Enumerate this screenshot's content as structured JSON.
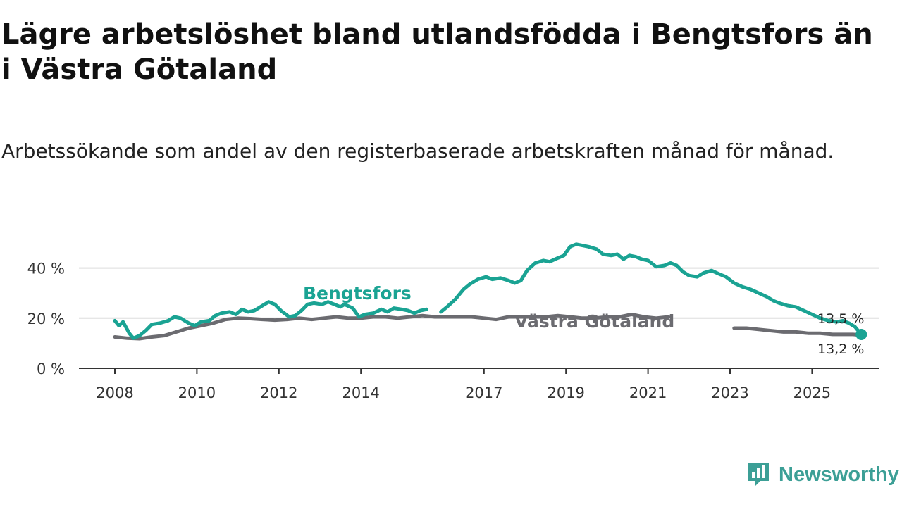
{
  "title": "Lägre arbetslöshet bland utlandsfödda i Bengtsfors än i Västra Götaland",
  "subtitle": "Arbetssökande som andel av den registerbaserade arbetskraften månad för månad.",
  "brand": {
    "name": "Newsworthy",
    "icon": "newsworthy-logo-icon"
  },
  "colors": {
    "bengtsfors": "#1aa393",
    "vastra_gotaland": "#6b6b70",
    "grid": "#dddddd",
    "axis": "#333333",
    "brand": "#3c9f96"
  },
  "chart_data": {
    "type": "line",
    "title": "Lägre arbetslöshet bland utlandsfödda i Bengtsfors än i Västra Götaland",
    "subtitle": "Arbetssökande som andel av den registerbaserade arbetskraften månad för månad.",
    "xlabel": "",
    "ylabel": "",
    "xlim": [
      2008,
      2026.2
    ],
    "ylim": [
      0,
      50
    ],
    "y_ticks": [
      0,
      20,
      40
    ],
    "y_tick_labels": [
      "0 %",
      "20 %",
      "40 %"
    ],
    "x_ticks": [
      2008,
      2010,
      2012,
      2014,
      2017,
      2019,
      2021,
      2023,
      2025
    ],
    "x_tick_labels": [
      "2008",
      "2010",
      "2012",
      "2014",
      "2017",
      "2019",
      "2021",
      "2023",
      "2025"
    ],
    "grid": true,
    "series": [
      {
        "name": "Bengtsfors",
        "label": "Bengtsfors",
        "end_label": "13,5 %",
        "points": [
          [
            2008.0,
            19.0
          ],
          [
            2008.1,
            17.0
          ],
          [
            2008.2,
            18.5
          ],
          [
            2008.35,
            14.0
          ],
          [
            2008.45,
            12.0
          ],
          [
            2008.6,
            13.0
          ],
          [
            2008.75,
            15.0
          ],
          [
            2008.9,
            17.5
          ],
          [
            2009.1,
            18.0
          ],
          [
            2009.3,
            19.0
          ],
          [
            2009.45,
            20.5
          ],
          [
            2009.6,
            20.0
          ],
          [
            2009.8,
            18.0
          ],
          [
            2009.95,
            17.0
          ],
          [
            2010.1,
            18.5
          ],
          [
            2010.3,
            19.0
          ],
          [
            2010.45,
            21.0
          ],
          [
            2010.6,
            22.0
          ],
          [
            2010.8,
            22.5
          ],
          [
            2010.95,
            21.5
          ],
          [
            2011.1,
            23.5
          ],
          [
            2011.25,
            22.5
          ],
          [
            2011.4,
            23.0
          ],
          [
            2011.6,
            25.0
          ],
          [
            2011.75,
            26.5
          ],
          [
            2011.9,
            25.5
          ],
          [
            2012.05,
            23.0
          ],
          [
            2012.25,
            20.5
          ],
          [
            2012.4,
            21.0
          ],
          [
            2012.55,
            23.0
          ],
          [
            2012.7,
            25.5
          ],
          [
            2012.85,
            26.0
          ],
          [
            2013.05,
            25.5
          ],
          [
            2013.2,
            26.5
          ],
          [
            2013.35,
            25.5
          ],
          [
            2013.5,
            24.5
          ],
          [
            2013.6,
            25.5
          ],
          [
            2013.8,
            24.0
          ],
          [
            2013.95,
            20.5
          ],
          [
            2014.1,
            21.5
          ],
          [
            2014.3,
            22.0
          ],
          [
            2014.5,
            23.5
          ],
          [
            2014.65,
            22.5
          ],
          [
            2014.8,
            24.0
          ],
          [
            2015.0,
            23.5
          ],
          [
            2015.15,
            23.0
          ],
          [
            2015.3,
            22.0
          ],
          [
            2015.45,
            23.0
          ],
          [
            2015.6,
            23.5
          ],
          null,
          [
            2015.95,
            22.5
          ],
          [
            2016.1,
            24.5
          ],
          [
            2016.3,
            27.5
          ],
          [
            2016.5,
            31.5
          ],
          [
            2016.65,
            33.5
          ],
          [
            2016.85,
            35.5
          ],
          [
            2017.05,
            36.5
          ],
          [
            2017.2,
            35.5
          ],
          [
            2017.4,
            36.0
          ],
          [
            2017.6,
            35.0
          ],
          [
            2017.75,
            34.0
          ],
          [
            2017.9,
            35.0
          ],
          [
            2018.05,
            39.0
          ],
          [
            2018.25,
            42.0
          ],
          [
            2018.45,
            43.0
          ],
          [
            2018.6,
            42.5
          ],
          [
            2018.8,
            44.0
          ],
          [
            2018.95,
            45.0
          ],
          [
            2019.1,
            48.5
          ],
          [
            2019.25,
            49.5
          ],
          [
            2019.4,
            49.0
          ],
          [
            2019.55,
            48.5
          ],
          [
            2019.75,
            47.5
          ],
          [
            2019.9,
            45.5
          ],
          [
            2020.1,
            45.0
          ],
          [
            2020.25,
            45.5
          ],
          [
            2020.4,
            43.5
          ],
          [
            2020.55,
            45.0
          ],
          [
            2020.7,
            44.5
          ],
          [
            2020.85,
            43.5
          ],
          [
            2021.0,
            43.0
          ],
          [
            2021.2,
            40.5
          ],
          [
            2021.4,
            41.0
          ],
          [
            2021.55,
            42.0
          ],
          [
            2021.7,
            41.0
          ],
          [
            2021.85,
            38.5
          ],
          [
            2022.0,
            37.0
          ],
          [
            2022.2,
            36.5
          ],
          [
            2022.35,
            38.0
          ],
          [
            2022.55,
            39.0
          ],
          [
            2022.75,
            37.5
          ],
          [
            2022.9,
            36.5
          ],
          [
            2023.1,
            34.0
          ],
          [
            2023.3,
            32.5
          ],
          [
            2023.5,
            31.5
          ],
          [
            2023.7,
            30.0
          ],
          [
            2023.9,
            28.5
          ],
          [
            2024.05,
            27.0
          ],
          [
            2024.2,
            26.0
          ],
          [
            2024.4,
            25.0
          ],
          [
            2024.6,
            24.5
          ],
          [
            2024.8,
            23.0
          ],
          [
            2025.0,
            21.5
          ],
          [
            2025.2,
            20.0
          ],
          [
            2025.4,
            19.0
          ],
          [
            2025.6,
            18.5
          ],
          [
            2025.75,
            19.0
          ],
          [
            2025.9,
            18.0
          ],
          [
            2026.05,
            16.5
          ],
          [
            2026.2,
            13.5
          ]
        ]
      },
      {
        "name": "Västra Götaland",
        "label": "Västra Götaland",
        "end_label": "13,2 %",
        "points": [
          [
            2008.0,
            12.5
          ],
          [
            2008.3,
            12.0
          ],
          [
            2008.6,
            11.8
          ],
          [
            2008.9,
            12.5
          ],
          [
            2009.2,
            13.0
          ],
          [
            2009.5,
            14.5
          ],
          [
            2009.8,
            16.0
          ],
          [
            2010.1,
            17.0
          ],
          [
            2010.4,
            18.0
          ],
          [
            2010.7,
            19.5
          ],
          [
            2011.0,
            20.0
          ],
          [
            2011.3,
            19.8
          ],
          [
            2011.6,
            19.5
          ],
          [
            2011.9,
            19.2
          ],
          [
            2012.2,
            19.5
          ],
          [
            2012.5,
            20.0
          ],
          [
            2012.8,
            19.5
          ],
          [
            2013.1,
            20.0
          ],
          [
            2013.4,
            20.5
          ],
          [
            2013.7,
            20.0
          ],
          [
            2014.0,
            20.0
          ],
          [
            2014.3,
            20.5
          ],
          [
            2014.6,
            20.5
          ],
          [
            2014.9,
            20.0
          ],
          [
            2015.2,
            20.5
          ],
          [
            2015.5,
            21.0
          ],
          [
            2015.8,
            20.5
          ],
          [
            2016.1,
            20.5
          ],
          [
            2016.4,
            20.5
          ],
          [
            2016.7,
            20.5
          ],
          [
            2017.0,
            20.0
          ],
          [
            2017.3,
            19.5
          ],
          [
            2017.6,
            20.5
          ],
          [
            2017.9,
            20.5
          ],
          [
            2018.2,
            20.5
          ],
          [
            2018.5,
            20.5
          ],
          [
            2018.8,
            21.0
          ],
          [
            2019.1,
            20.5
          ],
          [
            2019.4,
            20.0
          ],
          [
            2019.7,
            20.0
          ],
          [
            2020.0,
            20.5
          ],
          [
            2020.3,
            20.5
          ],
          [
            2020.6,
            21.5
          ],
          [
            2020.9,
            20.5
          ],
          [
            2021.2,
            20.0
          ],
          [
            2021.5,
            20.5
          ],
          null,
          [
            2023.1,
            16.0
          ],
          [
            2023.4,
            16.0
          ],
          [
            2023.7,
            15.5
          ],
          [
            2024.0,
            15.0
          ],
          [
            2024.3,
            14.5
          ],
          [
            2024.6,
            14.5
          ],
          [
            2024.9,
            14.0
          ],
          [
            2025.2,
            14.0
          ],
          [
            2025.5,
            13.5
          ],
          [
            2025.8,
            13.5
          ],
          [
            2026.0,
            13.5
          ],
          [
            2026.2,
            13.2
          ]
        ]
      }
    ]
  }
}
